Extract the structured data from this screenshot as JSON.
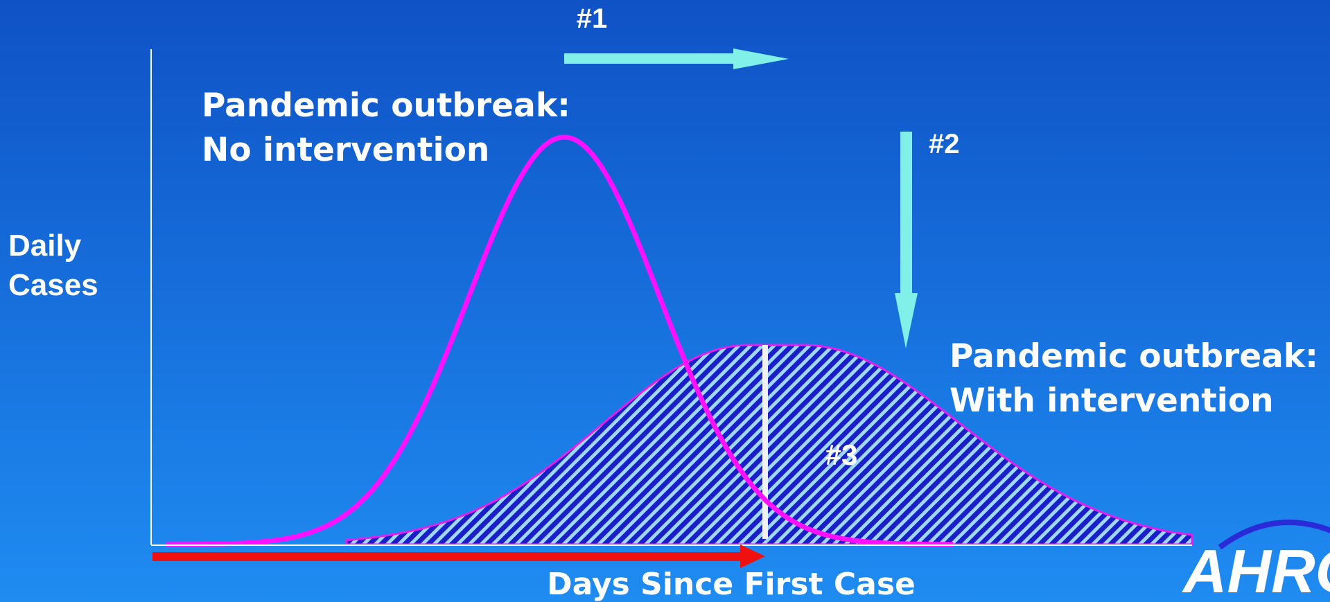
{
  "arrows": {
    "shift": "#1",
    "flatten": "#2",
    "area": "#3"
  },
  "curves": {
    "no_intervention": {
      "line1": "Pandemic outbreak:",
      "line2": "No intervention"
    },
    "with_intervention": {
      "line1": "Pandemic outbreak:",
      "line2": "With intervention"
    }
  },
  "axes": {
    "y_label": {
      "line1": "Daily",
      "line2": "Cases"
    },
    "x_label": "Days Since First Case"
  },
  "logo": "AHRQ"
}
